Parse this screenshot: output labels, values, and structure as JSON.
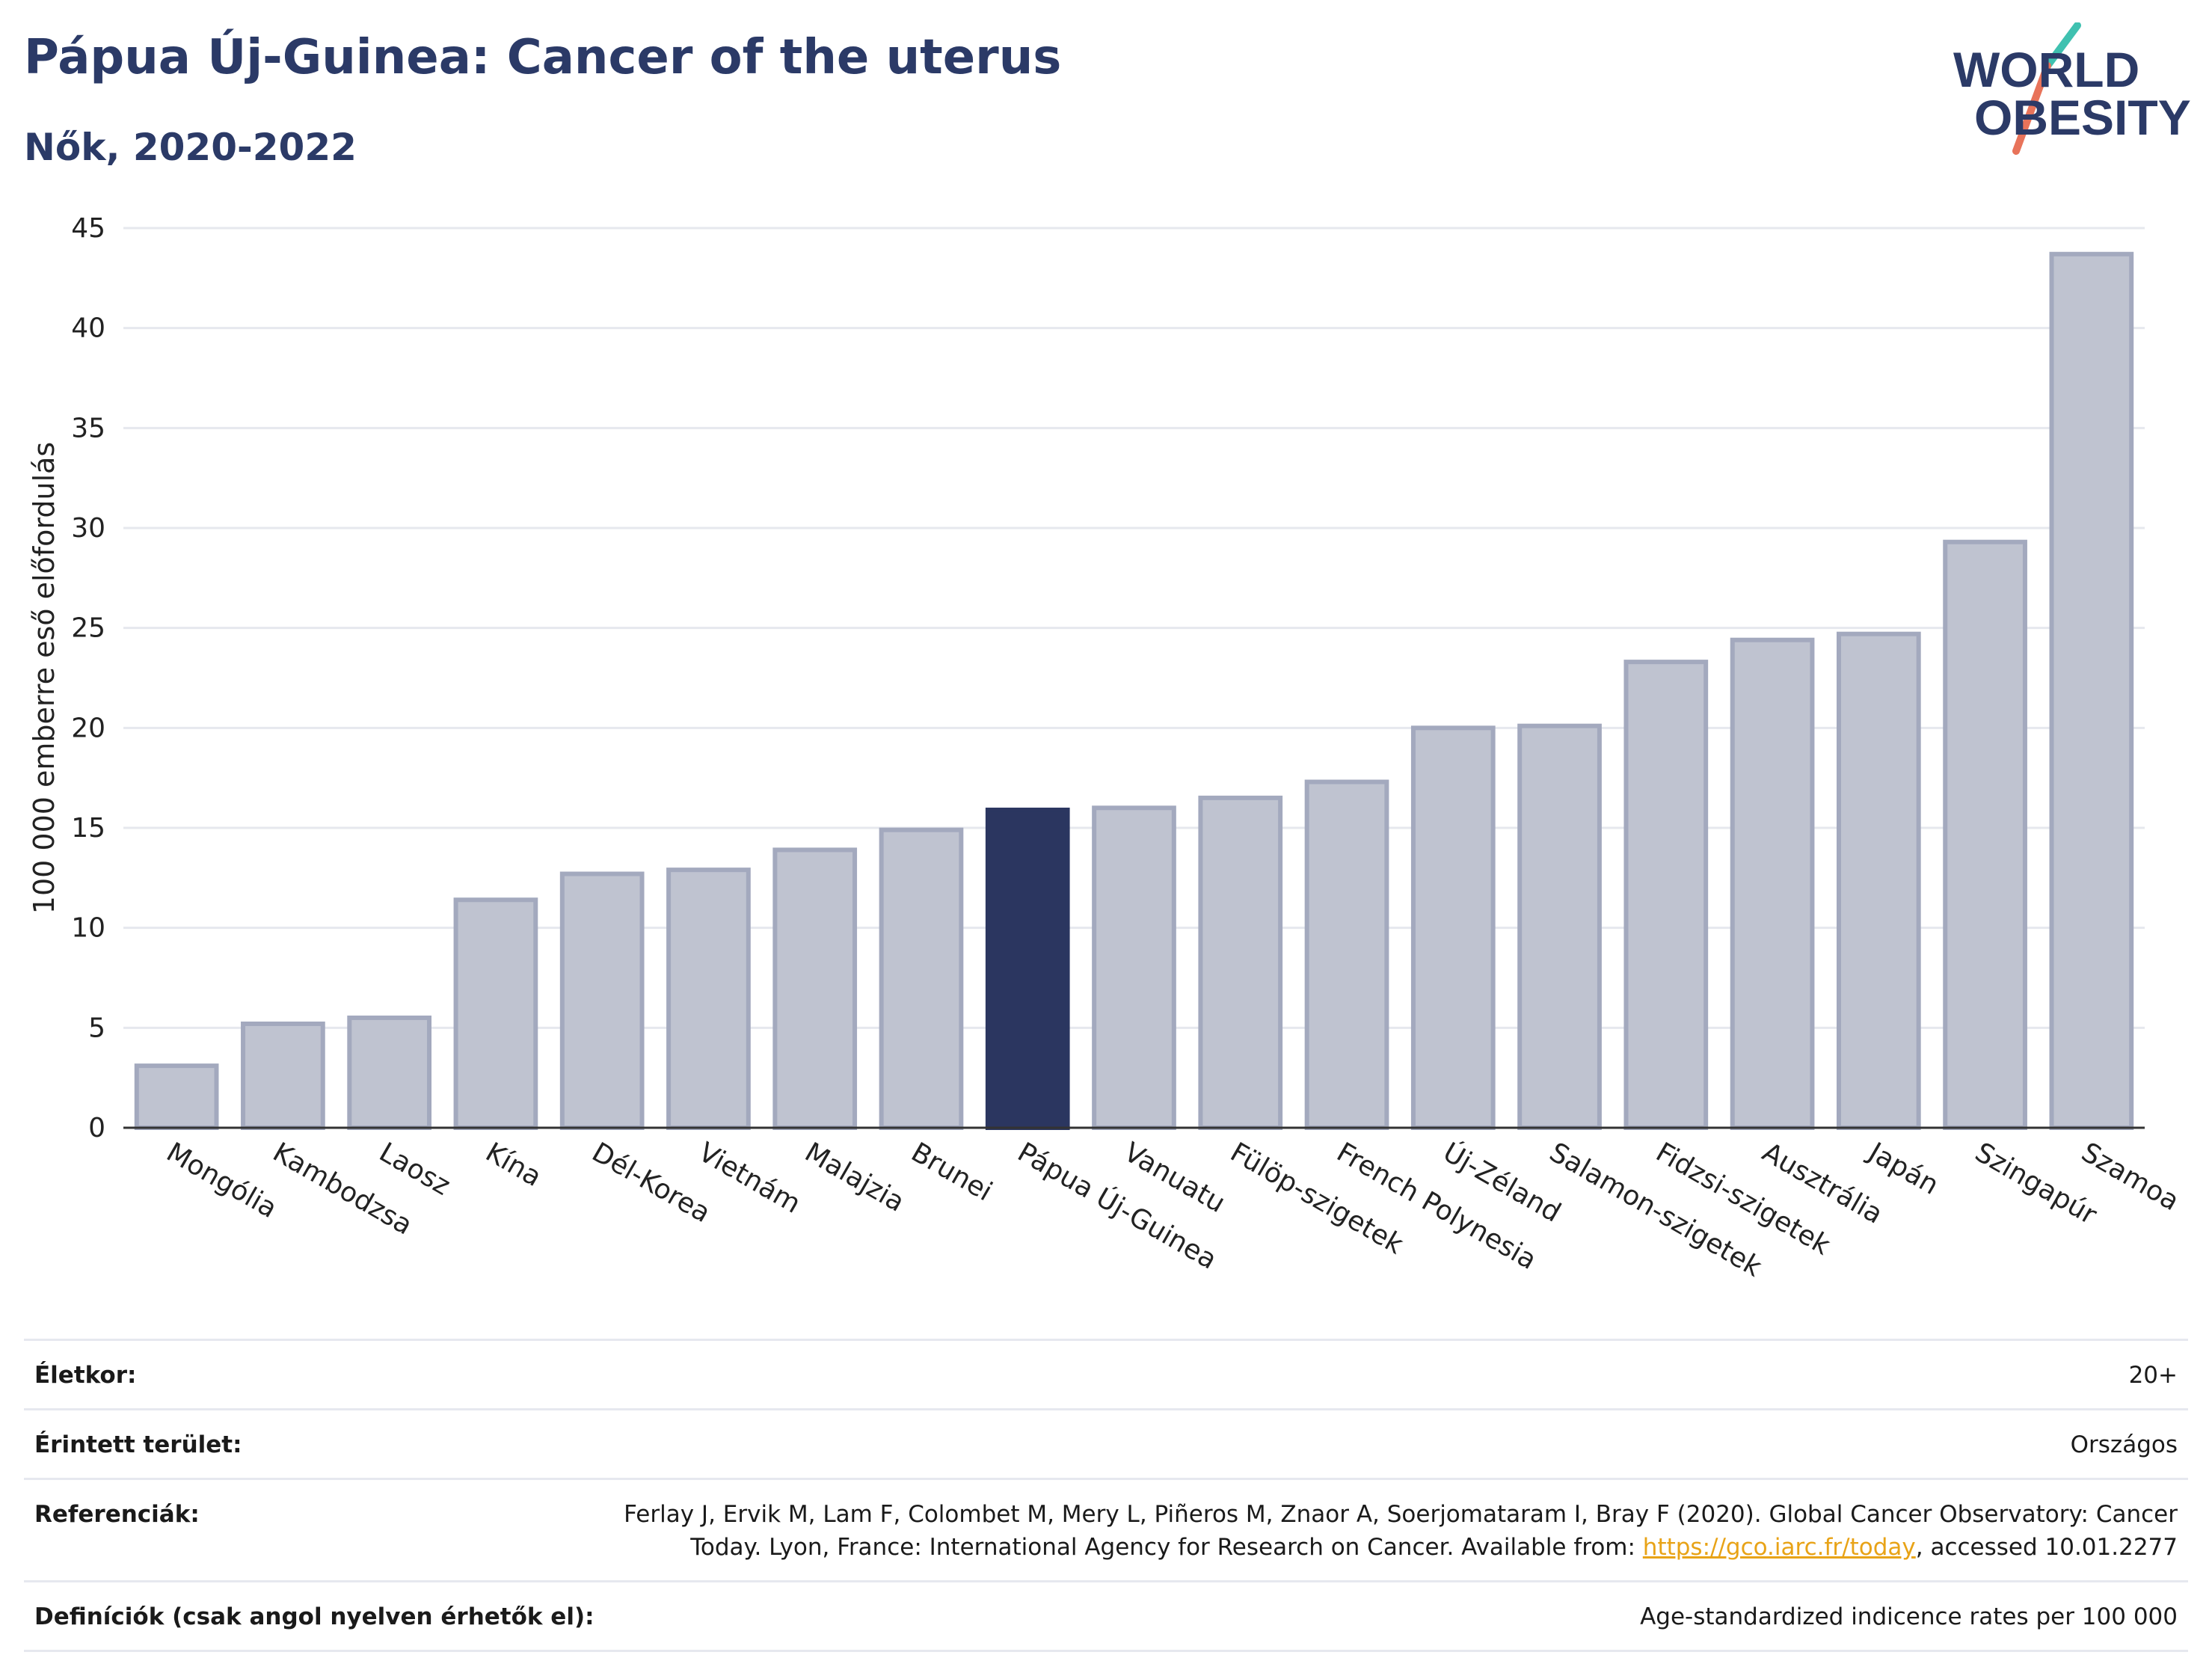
{
  "header": {
    "title": "Pápua Új-Guinea: Cancer of the uterus",
    "subtitle": "Nők, 2020-2022"
  },
  "logo": {
    "line1": "WORLD",
    "line2": "OBESITY",
    "accent_teal": "#3fc1b0",
    "accent_coral": "#e8735a",
    "color": "#2b3a67"
  },
  "chart_data": {
    "type": "bar",
    "title": "Pápua Új-Guinea: Cancer of the uterus",
    "subtitle": "Nők, 2020-2022",
    "xlabel": "",
    "ylabel": "100 000 emberre eső előfordulás",
    "ylim": [
      0,
      45
    ],
    "yticks": [
      0,
      5,
      10,
      15,
      20,
      25,
      30,
      35,
      40,
      45
    ],
    "grid": true,
    "legend": "none",
    "highlight": "Pápua Új-Guinea",
    "colors": {
      "bar": "#bfc3d0",
      "bar_border": "#a3a9be",
      "highlight": "#2b3660"
    },
    "categories": [
      "Mongólia",
      "Kambodzsa",
      "Laosz",
      "Kína",
      "Dél-Korea",
      "Vietnám",
      "Malajzia",
      "Brunei",
      "Pápua Új-Guinea",
      "Vanuatu",
      "Fülöp-szigetek",
      "French Polynesia",
      "Új-Zéland",
      "Salamon-szigetek",
      "Fidzsi-szigetek",
      "Ausztrália",
      "Japán",
      "Szingapúr",
      "Szamoa"
    ],
    "values": [
      3.1,
      5.2,
      5.5,
      11.4,
      12.7,
      12.9,
      13.9,
      14.9,
      15.9,
      16.0,
      16.5,
      17.3,
      20.0,
      20.1,
      23.3,
      24.4,
      24.7,
      29.3,
      43.7
    ]
  },
  "info": {
    "rows": [
      {
        "label": "Életkor:",
        "value": "20+"
      },
      {
        "label": "Érintett terület:",
        "value": "Országos"
      },
      {
        "label": "Referenciák:",
        "value_before": "Ferlay J, Ervik M, Lam F, Colombet M, Mery L, Piñeros M, Znaor A, Soerjomataram I, Bray F (2020). Global Cancer Observatory: Cancer Today. Lyon, France: International Agency for Research on Cancer. Available from: ",
        "link": "https://gco.iarc.fr/today",
        "value_after": ", accessed 10.01.2277"
      },
      {
        "label": "Definíciók (csak angol nyelven érhetők el):",
        "value": "Age-standardized indicence rates per 100 000"
      }
    ]
  }
}
